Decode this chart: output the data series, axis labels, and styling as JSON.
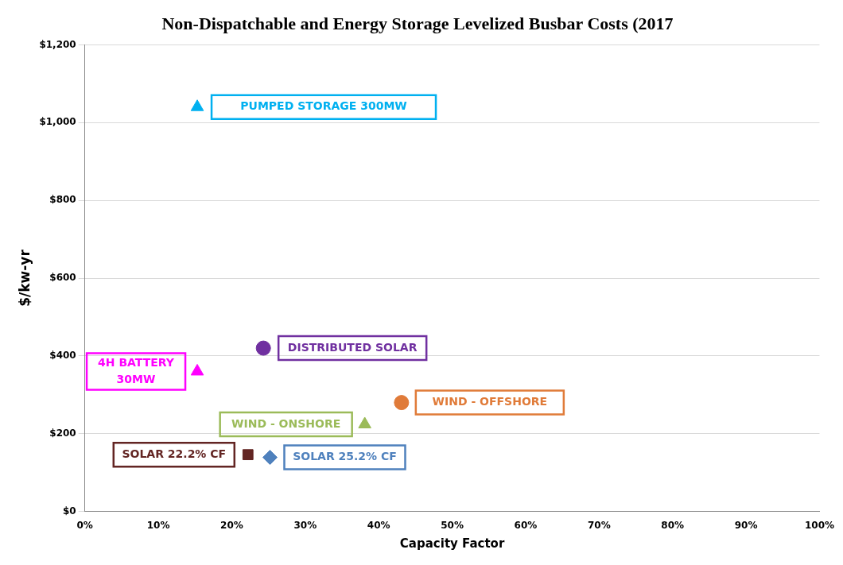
{
  "chart_data": {
    "type": "scatter",
    "title": "Non-Dispatchable and Energy Storage Levelized Busbar Costs (2017",
    "xlabel": "Capacity Factor",
    "ylabel": "$/kw-yr",
    "xlim": [
      0,
      100
    ],
    "xticks": [
      {
        "value": 0,
        "label": "0%"
      },
      {
        "value": 10,
        "label": "10%"
      },
      {
        "value": 20,
        "label": "20%"
      },
      {
        "value": 30,
        "label": "30%"
      },
      {
        "value": 40,
        "label": "40%"
      },
      {
        "value": 50,
        "label": "50%"
      },
      {
        "value": 60,
        "label": "60%"
      },
      {
        "value": 70,
        "label": "70%"
      },
      {
        "value": 80,
        "label": "80%"
      },
      {
        "value": 90,
        "label": "90%"
      },
      {
        "value": 100,
        "label": "100%"
      }
    ],
    "ylim": [
      0,
      1200
    ],
    "yticks": [
      {
        "value": 0,
        "label": "$0"
      },
      {
        "value": 200,
        "label": "$200"
      },
      {
        "value": 400,
        "label": "$400"
      },
      {
        "value": 600,
        "label": "$600"
      },
      {
        "value": 800,
        "label": "$800"
      },
      {
        "value": 1000,
        "label": "$1,000"
      },
      {
        "value": 1200,
        "label": "$1,200"
      }
    ],
    "grid": "y",
    "legend": false,
    "series": [
      {
        "name": "PUMPED STORAGE 300MW",
        "color": "#00b0f0",
        "marker": "triangle",
        "x": [
          15.3
        ],
        "values": [
          1040
        ]
      },
      {
        "name": "4H BATTERY 30MW",
        "color": "#ff00ff",
        "marker": "triangle",
        "x": [
          15.3
        ],
        "values": [
          360
        ]
      },
      {
        "name": "DISTRIBUTED SOLAR",
        "color": "#7030a0",
        "marker": "circle",
        "x": [
          24.3
        ],
        "values": [
          420
        ]
      },
      {
        "name": "WIND - OFFSHORE",
        "color": "#e07b39",
        "marker": "circle",
        "x": [
          43.1
        ],
        "values": [
          280
        ]
      },
      {
        "name": "WIND - ONSHORE",
        "color": "#9bbb59",
        "marker": "triangle",
        "x": [
          38.1
        ],
        "values": [
          224
        ]
      },
      {
        "name": "SOLAR 22.2% CF",
        "color": "#632523",
        "marker": "square",
        "x": [
          22.2
        ],
        "values": [
          146
        ]
      },
      {
        "name": "SOLAR 25.2% CF",
        "color": "#4f81bd",
        "marker": "diamond",
        "x": [
          25.2
        ],
        "values": [
          139
        ]
      }
    ]
  }
}
